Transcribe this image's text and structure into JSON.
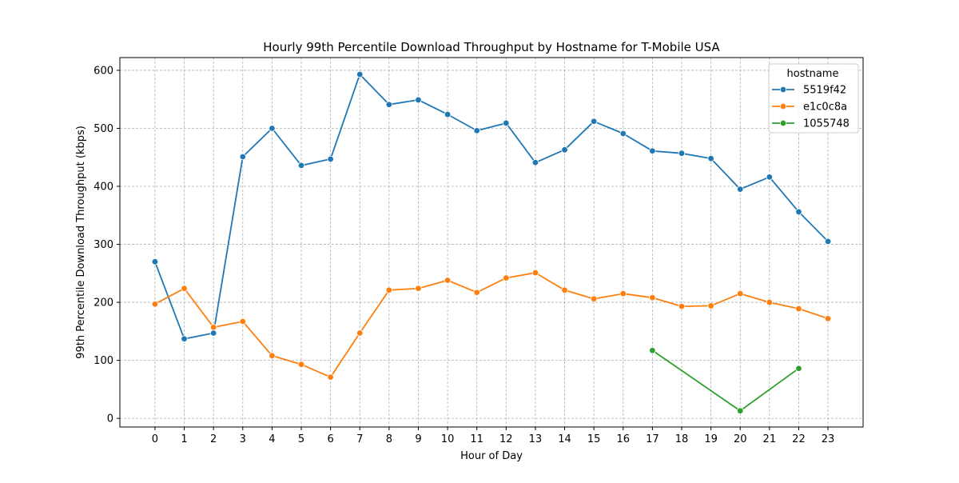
{
  "chart_data": {
    "type": "line",
    "title": "Hourly 99th Percentile Download Throughput by Hostname for T-Mobile USA",
    "xlabel": "Hour of Day",
    "ylabel": "99th Percentile Download Throughput (kbps)",
    "xlim": [
      -1.2,
      24.2
    ],
    "ylim": [
      -15,
      622
    ],
    "xticks": [
      0,
      1,
      2,
      3,
      4,
      5,
      6,
      7,
      8,
      9,
      10,
      11,
      12,
      13,
      14,
      15,
      16,
      17,
      18,
      19,
      20,
      21,
      22,
      23
    ],
    "yticks": [
      0,
      100,
      200,
      300,
      400,
      500,
      600
    ],
    "grid": true,
    "legend": {
      "title": "hostname",
      "placement": "top-right"
    },
    "series": [
      {
        "name": "5519f42",
        "color": "#1f77b4",
        "x": [
          0,
          1,
          2,
          3,
          4,
          5,
          6,
          7,
          8,
          9,
          10,
          11,
          12,
          13,
          14,
          15,
          16,
          17,
          18,
          19,
          20,
          21,
          22,
          23
        ],
        "values": [
          270,
          137,
          147,
          451,
          500,
          436,
          447,
          593,
          541,
          549,
          524,
          496,
          509,
          441,
          463,
          512,
          491,
          461,
          457,
          448,
          395,
          416,
          356,
          305
        ]
      },
      {
        "name": "e1c0c8a",
        "color": "#ff7f0e",
        "x": [
          0,
          1,
          2,
          3,
          4,
          5,
          6,
          7,
          8,
          9,
          10,
          11,
          12,
          13,
          14,
          15,
          16,
          17,
          18,
          19,
          20,
          21,
          22,
          23
        ],
        "values": [
          197,
          224,
          157,
          167,
          108,
          93,
          71,
          147,
          221,
          224,
          238,
          217,
          242,
          251,
          221,
          206,
          215,
          208,
          193,
          194,
          215,
          200,
          189,
          172
        ]
      },
      {
        "name": "1055748",
        "color": "#2ca02c",
        "x": [
          17,
          20,
          22
        ],
        "values": [
          117,
          13,
          86
        ]
      }
    ]
  }
}
